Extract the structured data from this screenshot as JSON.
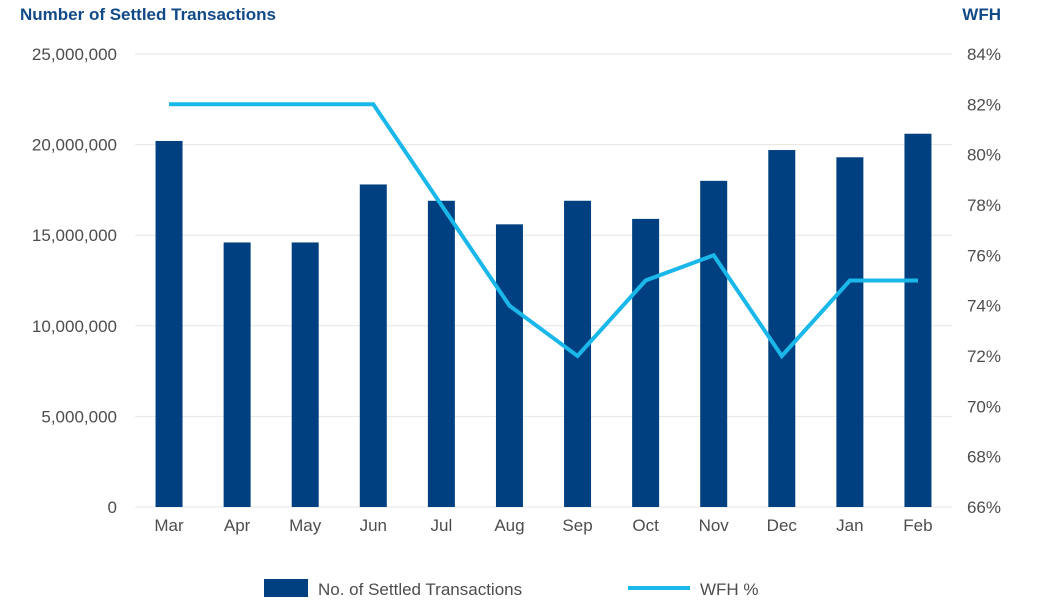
{
  "chart_data": {
    "type": "bar",
    "categories": [
      "Mar",
      "Apr",
      "May",
      "Jun",
      "Jul",
      "Aug",
      "Sep",
      "Oct",
      "Nov",
      "Dec",
      "Jan",
      "Feb"
    ],
    "series": [
      {
        "name": "No. of Settled Transactions",
        "type": "bar",
        "axis": "left",
        "values": [
          20200000,
          14600000,
          14600000,
          17800000,
          16900000,
          15600000,
          16900000,
          15900000,
          18000000,
          19700000,
          19300000,
          20600000
        ]
      },
      {
        "name": "WFH %",
        "type": "line",
        "axis": "right",
        "values": [
          82,
          82,
          82,
          82,
          78,
          74,
          72,
          75,
          76,
          72,
          75,
          75
        ]
      }
    ],
    "ylabel": "Number of Settled Transactions",
    "ylabel_right": "WFH",
    "ylim": [
      0,
      25000000
    ],
    "ylim_right": [
      66,
      84
    ],
    "yticks": [
      "0",
      "5,000,000",
      "10,000,000",
      "15,000,000",
      "20,000,000",
      "25,000,000"
    ],
    "yticks_right": [
      "66%",
      "68%",
      "70%",
      "72%",
      "74%",
      "76%",
      "78%",
      "80%",
      "82%",
      "84%"
    ],
    "grid": true,
    "legend_position": "bottom"
  },
  "colors": {
    "bar": "#004080",
    "line": "#1ab8ea",
    "title": "#124a87",
    "grid": "#e6e6e6"
  }
}
